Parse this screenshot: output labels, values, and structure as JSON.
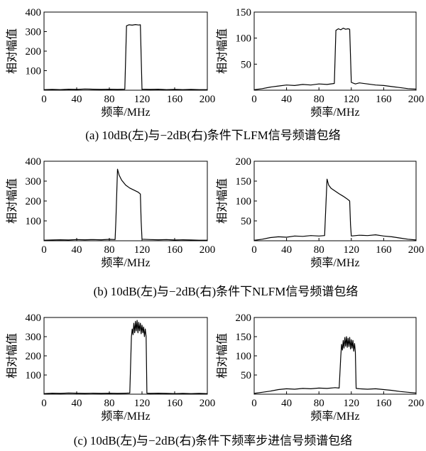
{
  "chart_data": [
    {
      "type": "line",
      "xlabel": "频率/MHz",
      "ylabel": "相对幅值",
      "xlim": [
        0,
        200
      ],
      "ylim": [
        0,
        400
      ],
      "xticks": [
        "0",
        "40",
        "80",
        "120",
        "160",
        "200"
      ],
      "yticks": [
        "100",
        "200",
        "300",
        "400"
      ],
      "series": [
        {
          "points": [
            [
              0,
              3
            ],
            [
              10,
              4
            ],
            [
              20,
              3
            ],
            [
              30,
              5
            ],
            [
              40,
              4
            ],
            [
              50,
              6
            ],
            [
              60,
              5
            ],
            [
              70,
              4
            ],
            [
              80,
              5
            ],
            [
              90,
              4
            ],
            [
              99,
              5
            ],
            [
              101,
              330
            ],
            [
              104,
              335
            ],
            [
              108,
              333
            ],
            [
              112,
              336
            ],
            [
              116,
              334
            ],
            [
              118,
              335
            ],
            [
              120,
              5
            ],
            [
              130,
              4
            ],
            [
              140,
              5
            ],
            [
              150,
              3
            ],
            [
              160,
              4
            ],
            [
              170,
              3
            ],
            [
              180,
              4
            ],
            [
              190,
              3
            ],
            [
              200,
              3
            ]
          ]
        }
      ]
    },
    {
      "type": "line",
      "xlabel": "频率/MHz",
      "ylabel": "相对幅值",
      "xlim": [
        0,
        200
      ],
      "ylim": [
        0,
        150
      ],
      "xticks": [
        "0",
        "40",
        "80",
        "120",
        "160",
        "200"
      ],
      "yticks": [
        "50",
        "100",
        "150"
      ],
      "series": [
        {
          "points": [
            [
              0,
              1
            ],
            [
              10,
              3
            ],
            [
              20,
              6
            ],
            [
              30,
              8
            ],
            [
              40,
              10
            ],
            [
              50,
              9
            ],
            [
              60,
              11
            ],
            [
              70,
              10
            ],
            [
              80,
              12
            ],
            [
              90,
              11
            ],
            [
              99,
              13
            ],
            [
              101,
              115
            ],
            [
              104,
              118
            ],
            [
              107,
              116
            ],
            [
              110,
              119
            ],
            [
              113,
              117
            ],
            [
              116,
              118
            ],
            [
              118,
              117
            ],
            [
              120,
              15
            ],
            [
              125,
              12
            ],
            [
              130,
              14
            ],
            [
              140,
              12
            ],
            [
              150,
              10
            ],
            [
              160,
              9
            ],
            [
              170,
              7
            ],
            [
              180,
              5
            ],
            [
              190,
              3
            ],
            [
              200,
              2
            ]
          ]
        }
      ]
    },
    {
      "type": "line",
      "xlabel": "频率/MHz",
      "ylabel": "相对幅值",
      "xlim": [
        0,
        200
      ],
      "ylim": [
        0,
        400
      ],
      "xticks": [
        "0",
        "40",
        "80",
        "120",
        "160",
        "200"
      ],
      "yticks": [
        "100",
        "200",
        "300",
        "400"
      ],
      "series": [
        {
          "points": [
            [
              0,
              3
            ],
            [
              10,
              4
            ],
            [
              20,
              5
            ],
            [
              30,
              4
            ],
            [
              40,
              6
            ],
            [
              50,
              5
            ],
            [
              60,
              6
            ],
            [
              70,
              5
            ],
            [
              80,
              7
            ],
            [
              87,
              6
            ],
            [
              88,
              100
            ],
            [
              90,
              360
            ],
            [
              92,
              330
            ],
            [
              95,
              305
            ],
            [
              100,
              280
            ],
            [
              105,
              265
            ],
            [
              110,
              255
            ],
            [
              115,
              245
            ],
            [
              118,
              235
            ],
            [
              119,
              100
            ],
            [
              120,
              8
            ],
            [
              130,
              6
            ],
            [
              140,
              5
            ],
            [
              150,
              6
            ],
            [
              160,
              4
            ],
            [
              170,
              5
            ],
            [
              180,
              4
            ],
            [
              190,
              3
            ],
            [
              200,
              3
            ]
          ]
        }
      ]
    },
    {
      "type": "line",
      "xlabel": "频率/MHz",
      "ylabel": "相对幅值",
      "xlim": [
        0,
        200
      ],
      "ylim": [
        0,
        200
      ],
      "xticks": [
        "0",
        "40",
        "80",
        "120",
        "160",
        "200"
      ],
      "yticks": [
        "50",
        "100",
        "150",
        "200"
      ],
      "series": [
        {
          "points": [
            [
              0,
              1
            ],
            [
              10,
              4
            ],
            [
              20,
              8
            ],
            [
              30,
              10
            ],
            [
              40,
              9
            ],
            [
              50,
              12
            ],
            [
              60,
              11
            ],
            [
              70,
              13
            ],
            [
              80,
              12
            ],
            [
              87,
              13
            ],
            [
              88,
              60
            ],
            [
              90,
              155
            ],
            [
              92,
              140
            ],
            [
              95,
              132
            ],
            [
              100,
              125
            ],
            [
              105,
              118
            ],
            [
              110,
              112
            ],
            [
              115,
              105
            ],
            [
              118,
              100
            ],
            [
              119,
              40
            ],
            [
              120,
              12
            ],
            [
              130,
              14
            ],
            [
              140,
              13
            ],
            [
              150,
              15
            ],
            [
              160,
              12
            ],
            [
              170,
              10
            ],
            [
              180,
              7
            ],
            [
              190,
              4
            ],
            [
              200,
              2
            ]
          ]
        }
      ]
    },
    {
      "type": "line",
      "xlabel": "频率/MHz",
      "ylabel": "相对幅值",
      "xlim": [
        0,
        200
      ],
      "ylim": [
        0,
        400
      ],
      "xticks": [
        "0",
        "40",
        "80",
        "120",
        "160",
        "200"
      ],
      "yticks": [
        "100",
        "200",
        "300",
        "400"
      ],
      "series": [
        {
          "points": [
            [
              0,
              3
            ],
            [
              10,
              5
            ],
            [
              20,
              4
            ],
            [
              30,
              6
            ],
            [
              40,
              5
            ],
            [
              50,
              4
            ],
            [
              60,
              5
            ],
            [
              70,
              4
            ],
            [
              80,
              5
            ],
            [
              90,
              4
            ],
            [
              100,
              5
            ],
            [
              105,
              6
            ],
            [
              107,
              300
            ],
            [
              108,
              340
            ],
            [
              109,
              310
            ],
            [
              110,
              370
            ],
            [
              111,
              320
            ],
            [
              112,
              380
            ],
            [
              113,
              330
            ],
            [
              114,
              385
            ],
            [
              115,
              320
            ],
            [
              116,
              375
            ],
            [
              117,
              330
            ],
            [
              118,
              370
            ],
            [
              119,
              315
            ],
            [
              120,
              360
            ],
            [
              121,
              320
            ],
            [
              122,
              350
            ],
            [
              123,
              300
            ],
            [
              124,
              340
            ],
            [
              125,
              300
            ],
            [
              126,
              5
            ],
            [
              130,
              4
            ],
            [
              140,
              5
            ],
            [
              150,
              4
            ],
            [
              160,
              3
            ],
            [
              170,
              4
            ],
            [
              180,
              3
            ],
            [
              190,
              4
            ],
            [
              200,
              3
            ]
          ]
        }
      ]
    },
    {
      "type": "line",
      "xlabel": "频率/MHz",
      "ylabel": "相对幅值",
      "xlim": [
        0,
        200
      ],
      "ylim": [
        0,
        200
      ],
      "xticks": [
        "0",
        "40",
        "80",
        "120",
        "160",
        "200"
      ],
      "yticks": [
        "50",
        "100",
        "150",
        "200"
      ],
      "series": [
        {
          "points": [
            [
              0,
              2
            ],
            [
              10,
              5
            ],
            [
              20,
              8
            ],
            [
              30,
              12
            ],
            [
              40,
              14
            ],
            [
              50,
              13
            ],
            [
              60,
              15
            ],
            [
              70,
              14
            ],
            [
              80,
              16
            ],
            [
              90,
              15
            ],
            [
              100,
              17
            ],
            [
              105,
              16
            ],
            [
              107,
              100
            ],
            [
              108,
              130
            ],
            [
              109,
              115
            ],
            [
              110,
              140
            ],
            [
              111,
              120
            ],
            [
              112,
              148
            ],
            [
              113,
              125
            ],
            [
              114,
              150
            ],
            [
              115,
              122
            ],
            [
              116,
              146
            ],
            [
              117,
              124
            ],
            [
              118,
              148
            ],
            [
              119,
              118
            ],
            [
              120,
              142
            ],
            [
              121,
              120
            ],
            [
              122,
              140
            ],
            [
              123,
              112
            ],
            [
              124,
              132
            ],
            [
              125,
              110
            ],
            [
              126,
              15
            ],
            [
              130,
              14
            ],
            [
              140,
              13
            ],
            [
              150,
              14
            ],
            [
              160,
              12
            ],
            [
              170,
              10
            ],
            [
              180,
              7
            ],
            [
              190,
              5
            ],
            [
              200,
              3
            ]
          ]
        }
      ]
    }
  ],
  "captions": [
    "(a)  10dB(左)与−2dB(右)条件下LFM信号频谱包络",
    "(b)  10dB(左)与−2dB(右)条件下NLFM信号频谱包络",
    "(c)  10dB(左)与−2dB(右)条件下频率步进信号频谱包络"
  ]
}
